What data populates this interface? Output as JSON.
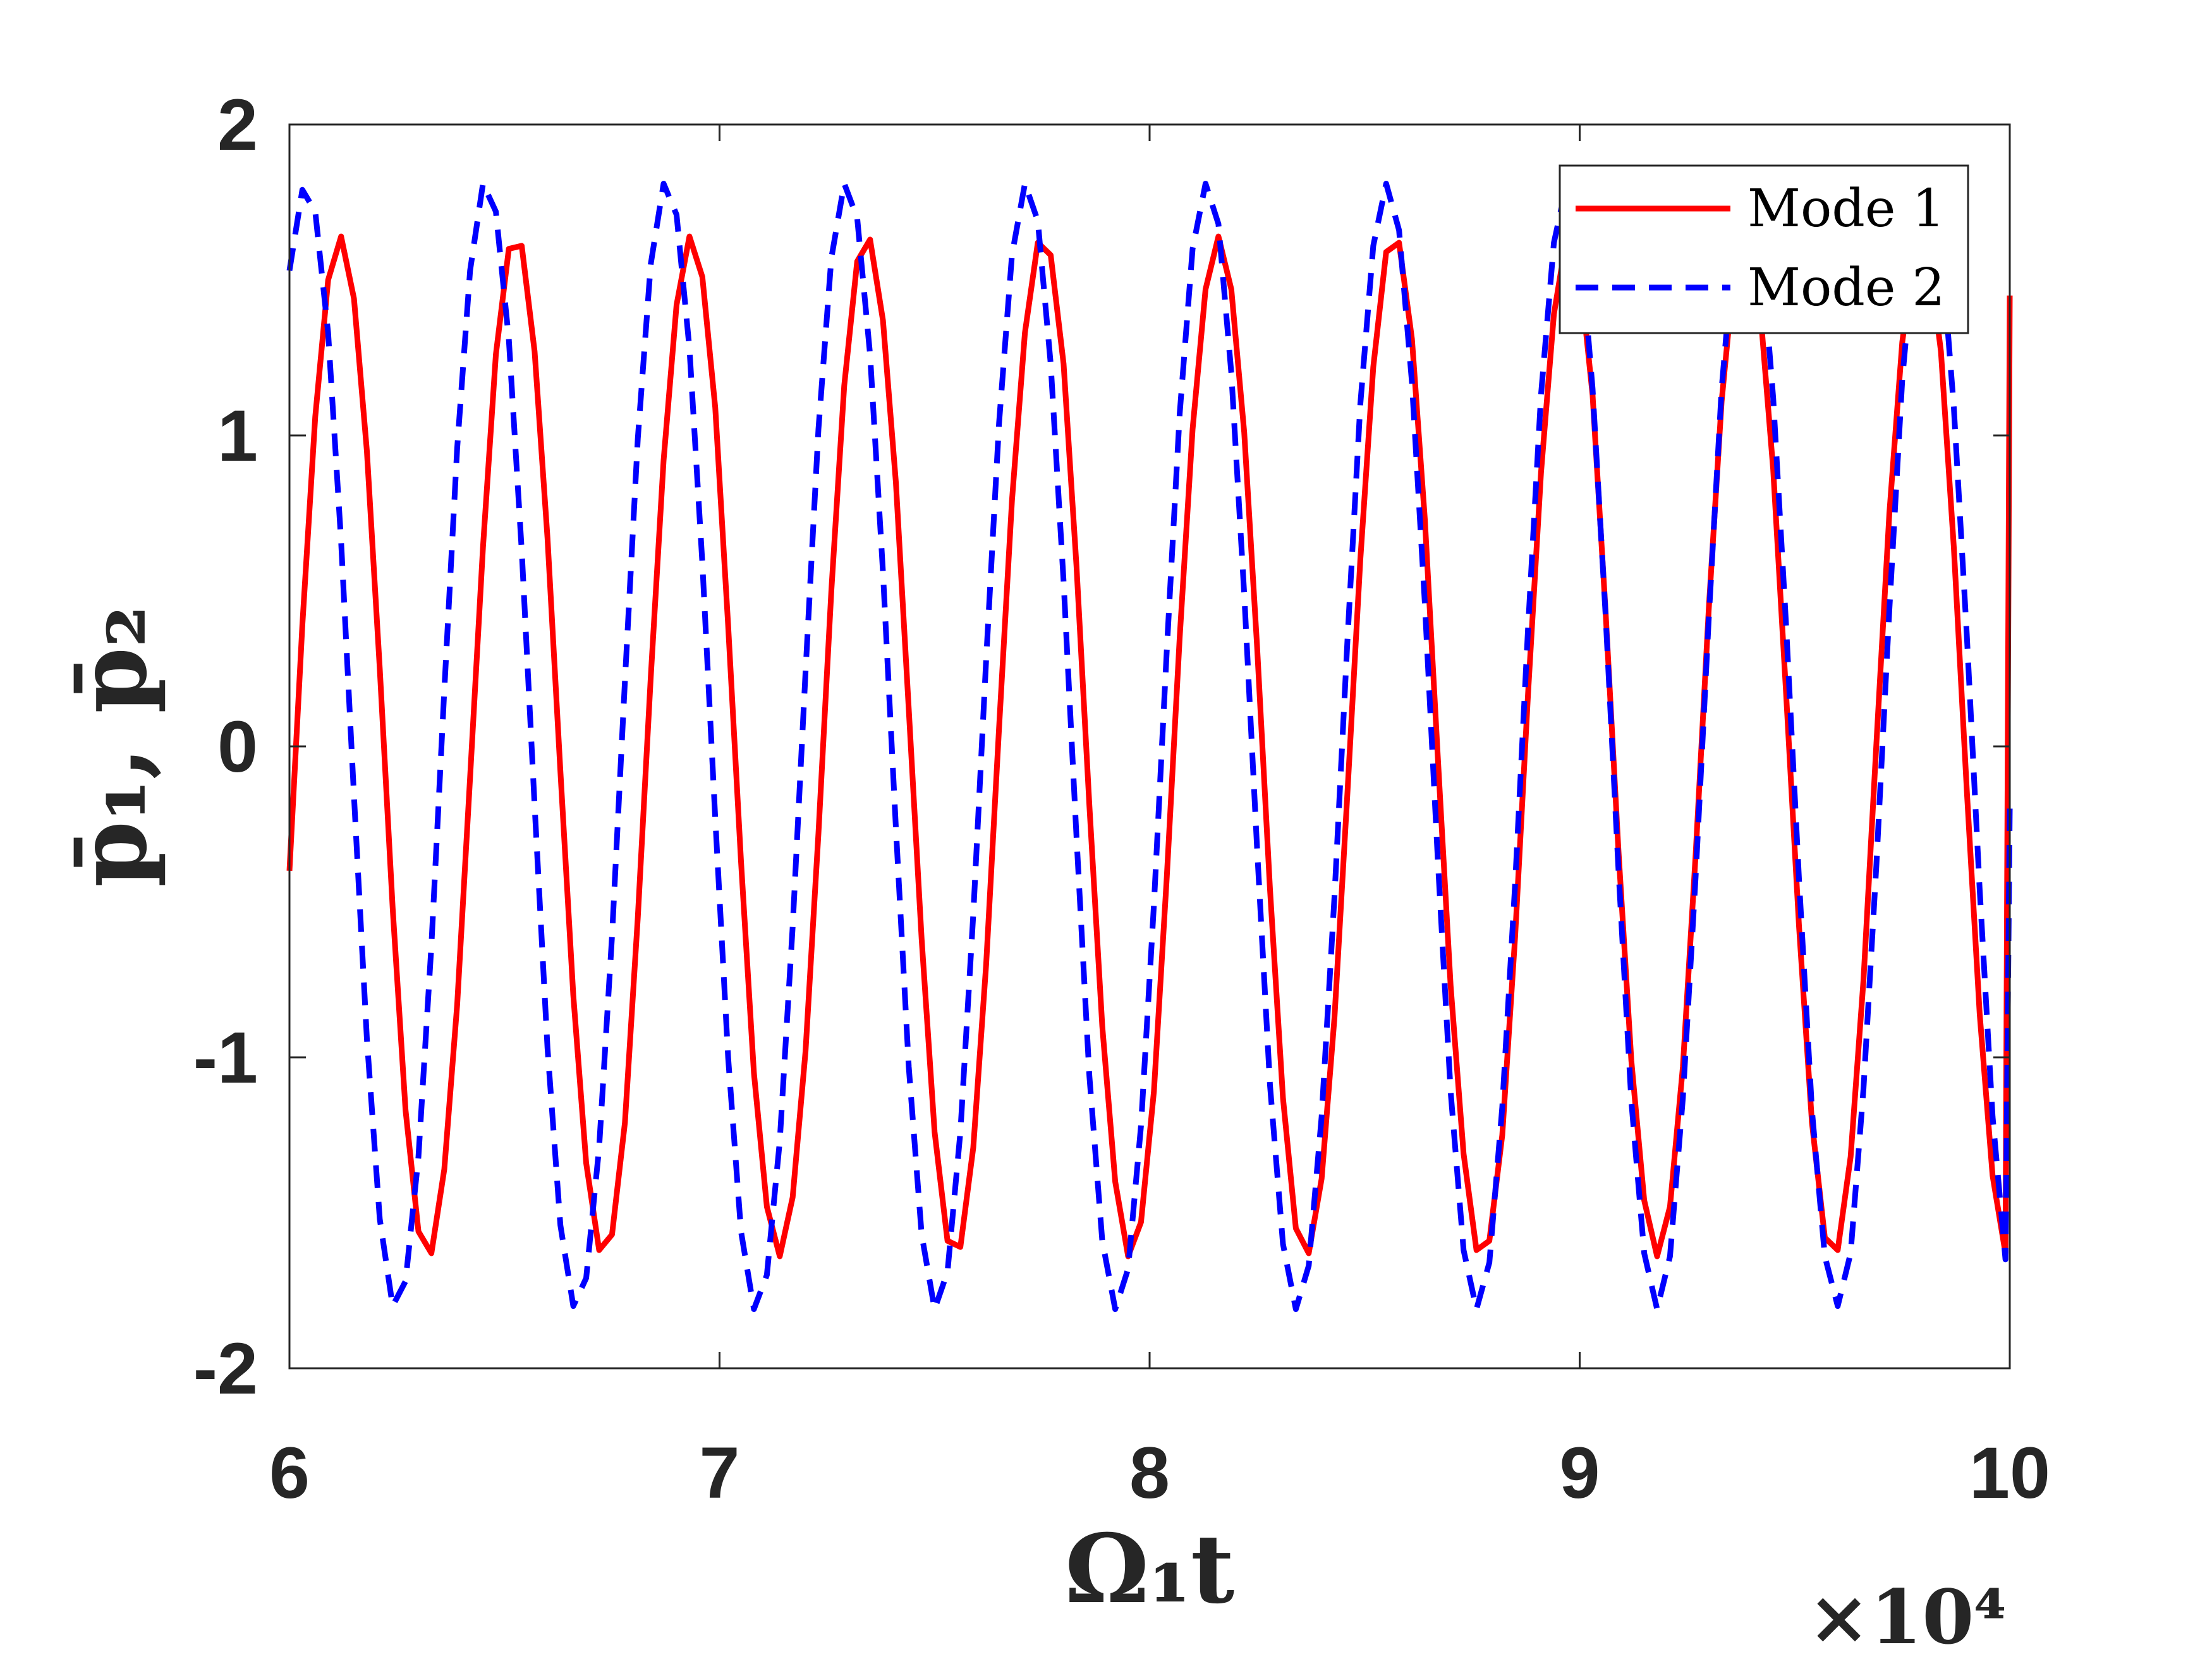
{
  "chart_data": {
    "type": "line",
    "title": "",
    "xlabel": "Ω₁t",
    "ylabel": "p̄₁, p̄₂",
    "x_exponent_label": "×10⁴",
    "x_scale_note": "x values in units of 10^4",
    "xlim": [
      6,
      10
    ],
    "ylim": [
      -2,
      2
    ],
    "xticks": [
      6,
      7,
      8,
      9,
      10
    ],
    "xtick_labels": [
      "6",
      "7",
      "8",
      "9",
      "10"
    ],
    "yticks": [
      -2,
      -1,
      0,
      1,
      2
    ],
    "ytick_labels": [
      "-2",
      "-1",
      "0",
      "1",
      "2"
    ],
    "grid": false,
    "legend_position": "top-right",
    "series": [
      {
        "name": "Mode 1",
        "color": "#ff0000",
        "style": "solid",
        "x": [
          6.0,
          6.03,
          6.06,
          6.09,
          6.12,
          6.15,
          6.18,
          6.21,
          6.24,
          6.27,
          6.3,
          6.33,
          6.36,
          6.39,
          6.42,
          6.45,
          6.48,
          6.51,
          6.54,
          6.57,
          6.6,
          6.63,
          6.66,
          6.69,
          6.72,
          6.75,
          6.78,
          6.81,
          6.84,
          6.87,
          6.9,
          6.93,
          6.96,
          6.99,
          7.02,
          7.05,
          7.08,
          7.11,
          7.14,
          7.17,
          7.2,
          7.23,
          7.26,
          7.29,
          7.32,
          7.35,
          7.38,
          7.41,
          7.44,
          7.47,
          7.5,
          7.53,
          7.56,
          7.59,
          7.62,
          7.65,
          7.68,
          7.71,
          7.74,
          7.77,
          7.8,
          7.83,
          7.86,
          7.89,
          7.92,
          7.95,
          7.98,
          8.01,
          8.04,
          8.07,
          8.1,
          8.13,
          8.16,
          8.19,
          8.22,
          8.25,
          8.28,
          8.31,
          8.34,
          8.37,
          8.4,
          8.43,
          8.46,
          8.49,
          8.52,
          8.55,
          8.58,
          8.61,
          8.64,
          8.67,
          8.7,
          8.73,
          8.76,
          8.79,
          8.82,
          8.85,
          8.88,
          8.91,
          8.94,
          8.97,
          9.0,
          9.03,
          9.06,
          9.09,
          9.12,
          9.15,
          9.18,
          9.21,
          9.24,
          9.27,
          9.3,
          9.33,
          9.36,
          9.39,
          9.42,
          9.45,
          9.48,
          9.51,
          9.54,
          9.57,
          9.6,
          9.63,
          9.66,
          9.69,
          9.72,
          9.75,
          9.78,
          9.81,
          9.84,
          9.87,
          9.9,
          9.93,
          9.96,
          9.99,
          10.0
        ],
        "y": [
          -0.4,
          0.39,
          1.06,
          1.5,
          1.64,
          1.44,
          0.95,
          0.25,
          -0.52,
          -1.17,
          -1.56,
          -1.63,
          -1.36,
          -0.83,
          -0.1,
          0.64,
          1.26,
          1.6,
          1.61,
          1.27,
          0.67,
          -0.08,
          -0.8,
          -1.34,
          -1.62,
          -1.57,
          -1.21,
          -0.55,
          0.22,
          0.92,
          1.42,
          1.64,
          1.51,
          1.09,
          0.39,
          -0.37,
          -1.05,
          -1.48,
          -1.64,
          -1.45,
          -0.98,
          -0.28,
          0.5,
          1.16,
          1.56,
          1.63,
          1.37,
          0.85,
          0.12,
          -0.62,
          -1.24,
          -1.59,
          -1.61,
          -1.29,
          -0.7,
          0.06,
          0.79,
          1.33,
          1.62,
          1.58,
          1.23,
          0.58,
          -0.19,
          -0.9,
          -1.4,
          -1.64,
          -1.53,
          -1.11,
          -0.42,
          0.35,
          1.02,
          1.47,
          1.64,
          1.47,
          1.01,
          0.32,
          -0.46,
          -1.13,
          -1.55,
          -1.63,
          -1.39,
          -0.87,
          -0.15,
          0.6,
          1.22,
          1.59,
          1.62,
          1.31,
          0.73,
          -0.03,
          -0.77,
          -1.31,
          -1.62,
          -1.59,
          -1.25,
          -0.61,
          0.17,
          0.88,
          1.39,
          1.64,
          1.53,
          1.13,
          0.44,
          -0.33,
          -1.01,
          -1.46,
          -1.64,
          -1.48,
          -1.03,
          -0.34,
          0.44,
          1.11,
          1.54,
          1.63,
          1.4,
          0.89,
          0.17,
          -0.58,
          -1.21,
          -1.58,
          -1.62,
          -1.32,
          -0.75,
          0.01,
          0.75,
          1.3,
          1.61,
          1.6,
          1.27,
          0.64,
          -0.14,
          -0.86,
          -1.38,
          -1.63,
          1.45
        ]
      },
      {
        "name": "Mode 2",
        "color": "#0000ff",
        "style": "dashed",
        "x": [
          6.0,
          6.03,
          6.06,
          6.09,
          6.12,
          6.15,
          6.18,
          6.21,
          6.24,
          6.27,
          6.3,
          6.33,
          6.36,
          6.39,
          6.42,
          6.45,
          6.48,
          6.51,
          6.54,
          6.57,
          6.6,
          6.63,
          6.66,
          6.69,
          6.72,
          6.75,
          6.78,
          6.81,
          6.84,
          6.87,
          6.9,
          6.93,
          6.96,
          6.99,
          7.02,
          7.05,
          7.08,
          7.11,
          7.14,
          7.17,
          7.2,
          7.23,
          7.26,
          7.29,
          7.32,
          7.35,
          7.38,
          7.41,
          7.44,
          7.47,
          7.5,
          7.53,
          7.56,
          7.59,
          7.62,
          7.65,
          7.68,
          7.71,
          7.74,
          7.77,
          7.8,
          7.83,
          7.86,
          7.89,
          7.92,
          7.95,
          7.98,
          8.01,
          8.04,
          8.07,
          8.1,
          8.13,
          8.16,
          8.19,
          8.22,
          8.25,
          8.28,
          8.31,
          8.34,
          8.37,
          8.4,
          8.43,
          8.46,
          8.49,
          8.52,
          8.55,
          8.58,
          8.61,
          8.64,
          8.67,
          8.7,
          8.73,
          8.76,
          8.79,
          8.82,
          8.85,
          8.88,
          8.91,
          8.94,
          8.97,
          9.0,
          9.03,
          9.06,
          9.09,
          9.12,
          9.15,
          9.18,
          9.21,
          9.24,
          9.27,
          9.3,
          9.33,
          9.36,
          9.39,
          9.42,
          9.45,
          9.48,
          9.51,
          9.54,
          9.57,
          9.6,
          9.63,
          9.66,
          9.69,
          9.72,
          9.75,
          9.78,
          9.81,
          9.84,
          9.87,
          9.9,
          9.93,
          9.96,
          9.99,
          10.0
        ],
        "y": [
          1.53,
          1.79,
          1.72,
          1.33,
          0.66,
          -0.16,
          -0.94,
          -1.52,
          -1.8,
          -1.72,
          -1.32,
          -0.64,
          0.18,
          0.96,
          1.53,
          1.81,
          1.72,
          1.31,
          0.63,
          -0.19,
          -0.97,
          -1.54,
          -1.8,
          -1.71,
          -1.29,
          -0.61,
          0.21,
          0.99,
          1.55,
          1.81,
          1.71,
          1.28,
          0.59,
          -0.23,
          -1.0,
          -1.56,
          -1.81,
          -1.7,
          -1.27,
          -0.58,
          0.24,
          1.02,
          1.57,
          1.81,
          1.7,
          1.26,
          0.56,
          -0.26,
          -1.03,
          -1.57,
          -1.81,
          -1.69,
          -1.24,
          -0.54,
          0.28,
          1.04,
          1.58,
          1.81,
          1.69,
          1.23,
          0.53,
          -0.29,
          -1.06,
          -1.59,
          -1.81,
          -1.68,
          -1.22,
          -0.51,
          0.31,
          1.07,
          1.6,
          1.81,
          1.68,
          1.2,
          0.49,
          -0.33,
          -1.09,
          -1.6,
          -1.81,
          -1.67,
          -1.19,
          -0.48,
          0.34,
          1.1,
          1.61,
          1.81,
          1.66,
          1.17,
          0.46,
          -0.36,
          -1.11,
          -1.62,
          -1.81,
          -1.66,
          -1.16,
          -0.44,
          0.38,
          1.13,
          1.62,
          1.81,
          1.65,
          1.15,
          0.43,
          -0.39,
          -1.14,
          -1.63,
          -1.81,
          -1.64,
          -1.13,
          -0.41,
          0.41,
          1.15,
          1.63,
          1.81,
          1.64,
          1.12,
          0.39,
          -0.43,
          -1.17,
          -1.64,
          -1.8,
          -1.63,
          -1.1,
          -0.38,
          0.44,
          1.18,
          1.64,
          1.8,
          1.62,
          1.09,
          0.36,
          -0.46,
          -1.19,
          -1.65,
          -0.2
        ]
      }
    ]
  }
}
